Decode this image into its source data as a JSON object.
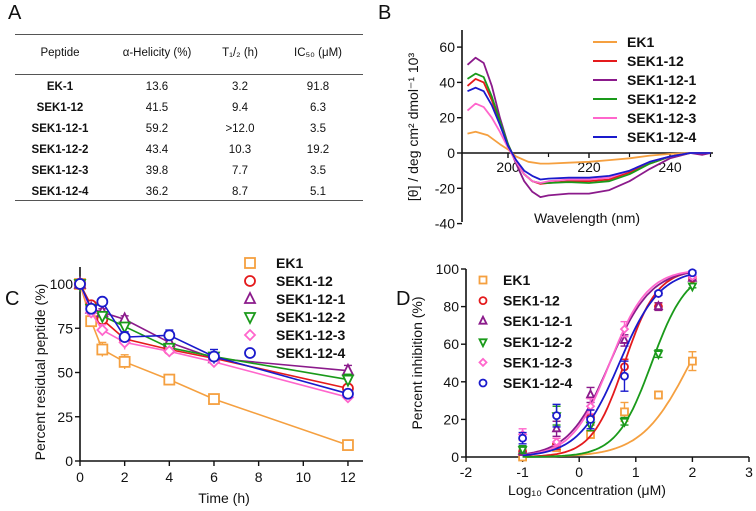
{
  "panel_labels": [
    "A",
    "B",
    "C",
    "D"
  ],
  "chart_data": [
    {
      "type": "table",
      "columns": [
        "Peptide",
        "α-Helicity (%)",
        "T₁/₂ (h)",
        "IC₅₀ (μM)"
      ],
      "rows": [
        [
          "EK-1",
          "13.6",
          "3.2",
          "91.8"
        ],
        [
          "SEK1-12",
          "41.5",
          "9.4",
          "6.3"
        ],
        [
          "SEK1-12-1",
          "59.2",
          ">12.0",
          "3.5"
        ],
        [
          "SEK1-12-2",
          "43.4",
          "10.3",
          "19.2"
        ],
        [
          "SEK1-12-3",
          "39.8",
          "7.7",
          "3.5"
        ],
        [
          "SEK1-12-4",
          "36.2",
          "8.7",
          "5.1"
        ]
      ]
    },
    {
      "type": "line",
      "xlabel": "Wavelength (nm)",
      "ylabel": "[θ] / deg cm² dmol⁻¹ 10³",
      "xlim": [
        188.6,
        250
      ],
      "ylim": [
        -40,
        70
      ],
      "xticks": [
        200,
        220,
        240
      ],
      "yticks": [
        60,
        40,
        20,
        0,
        -20,
        -40
      ],
      "legend": "top-right",
      "series": [
        {
          "name": "EK1",
          "color": "#f5a040",
          "x": [
            190,
            192,
            195,
            198,
            200,
            202,
            205,
            208,
            210,
            215,
            220,
            225,
            230,
            235,
            240,
            245,
            250
          ],
          "y": [
            11,
            12,
            10,
            5,
            2,
            -2,
            -5,
            -6,
            -6,
            -5.5,
            -5,
            -4,
            -3,
            -1.5,
            -0.5,
            0,
            0
          ]
        },
        {
          "name": "SEK1-12",
          "color": "#e41a1c",
          "x": [
            190,
            192,
            194,
            196,
            198,
            200,
            202,
            204,
            206,
            208,
            210,
            215,
            220,
            225,
            230,
            235,
            240,
            245,
            250
          ],
          "y": [
            38,
            42,
            40,
            30,
            17,
            5,
            -5,
            -12,
            -16,
            -17.5,
            -17,
            -16,
            -16,
            -15,
            -11,
            -6,
            -2,
            0,
            0
          ]
        },
        {
          "name": "SEK1-12-1",
          "color": "#8b1a8b",
          "x": [
            190,
            192,
            194,
            196,
            198,
            200,
            202,
            204,
            206,
            208,
            210,
            215,
            220,
            225,
            230,
            235,
            240,
            245,
            248,
            250
          ],
          "y": [
            50,
            54,
            51,
            38,
            20,
            5,
            -6,
            -16,
            -22,
            -25,
            -24,
            -23,
            -23,
            -21,
            -16,
            -9,
            -3,
            0,
            -1,
            0
          ]
        },
        {
          "name": "SEK1-12-2",
          "color": "#1a9a1a",
          "x": [
            190,
            192,
            194,
            196,
            198,
            200,
            202,
            204,
            206,
            208,
            210,
            215,
            220,
            225,
            230,
            235,
            240,
            245,
            250
          ],
          "y": [
            42,
            45,
            43,
            32,
            18,
            5,
            -5,
            -12,
            -16,
            -17,
            -17,
            -16.5,
            -17,
            -16,
            -12,
            -6,
            -2,
            0,
            0
          ]
        },
        {
          "name": "SEK1-12-3",
          "color": "#ff66cc",
          "x": [
            190,
            192,
            194,
            196,
            198,
            200,
            202,
            204,
            206,
            208,
            210,
            215,
            220,
            225,
            230,
            235,
            240,
            245,
            250
          ],
          "y": [
            24,
            28,
            26,
            20,
            12,
            3,
            -5,
            -12,
            -16,
            -17,
            -16,
            -15,
            -15,
            -14,
            -10,
            -5,
            -2,
            0,
            0
          ]
        },
        {
          "name": "SEK1-12-4",
          "color": "#1a1acc",
          "x": [
            190,
            192,
            194,
            196,
            198,
            200,
            202,
            204,
            206,
            208,
            210,
            215,
            220,
            225,
            230,
            235,
            240,
            245,
            250
          ],
          "y": [
            35,
            37,
            35,
            27,
            16,
            4,
            -4,
            -10,
            -13,
            -15,
            -14.5,
            -14,
            -14,
            -13,
            -10,
            -5,
            -2,
            0,
            0
          ]
        }
      ]
    },
    {
      "type": "line",
      "xlabel": "Time (h)",
      "ylabel": "Percent residual peptide (%)",
      "xlim": [
        0,
        12.7
      ],
      "ylim": [
        0,
        110
      ],
      "xticks": [
        0,
        2,
        4,
        6,
        8,
        10,
        12
      ],
      "yticks": [
        0,
        25,
        50,
        75,
        100
      ],
      "legend": "top-right",
      "x": [
        0,
        0.5,
        1,
        2,
        4,
        6,
        12
      ],
      "series": [
        {
          "name": "EK1",
          "color": "#f5a040",
          "marker": "square",
          "values": [
            100,
            79,
            63,
            56,
            46,
            35,
            9
          ],
          "error": [
            0,
            2,
            4,
            4,
            2,
            2,
            1
          ]
        },
        {
          "name": "SEK1-12",
          "color": "#e41a1c",
          "marker": "circle",
          "values": [
            100,
            88,
            80,
            69,
            63,
            58,
            41
          ],
          "error": [
            0,
            2,
            3,
            2,
            2,
            2,
            2
          ]
        },
        {
          "name": "SEK1-12-1",
          "color": "#8b1a8b",
          "marker": "triangle-up",
          "values": [
            100,
            86,
            84,
            80,
            67,
            58,
            51
          ],
          "error": [
            0,
            2,
            2,
            2,
            2,
            3,
            3
          ]
        },
        {
          "name": "SEK1-12-2",
          "color": "#1a9a1a",
          "marker": "triangle-down",
          "values": [
            100,
            86,
            82,
            76,
            64,
            59,
            46
          ],
          "error": [
            0,
            2,
            2,
            2,
            2,
            2,
            3
          ]
        },
        {
          "name": "SEK1-12-3",
          "color": "#ff66cc",
          "marker": "diamond",
          "values": [
            100,
            84,
            74,
            67,
            62,
            56,
            36
          ],
          "error": [
            0,
            2,
            3,
            4,
            2,
            2,
            2
          ]
        },
        {
          "name": "SEK1-12-4",
          "color": "#1a1acc",
          "marker": "circle",
          "values": [
            100,
            86,
            90,
            70,
            71,
            59,
            38
          ],
          "error": [
            0,
            2,
            2,
            3,
            3,
            4,
            2
          ]
        }
      ]
    },
    {
      "type": "scatter",
      "xlabel": "Log₁₀ Concentration (μM)",
      "ylabel": "Percent inhibition (%)",
      "xlim": [
        -2,
        3
      ],
      "ylim": [
        0,
        100
      ],
      "xticks": [
        -2,
        -1,
        0,
        1,
        2,
        3
      ],
      "yticks": [
        0,
        20,
        40,
        60,
        80,
        100
      ],
      "legend": "top-left",
      "x": [
        -1,
        -0.4,
        0.2,
        0.8,
        1.4,
        2
      ],
      "series": [
        {
          "name": "EK1",
          "color": "#f5a040",
          "marker": "square",
          "values": [
            0,
            5,
            12,
            24,
            33,
            51
          ],
          "error": [
            1,
            2,
            2,
            5,
            2,
            5
          ],
          "fit": {
            "log_ic50": 1.96,
            "hill": 1.0
          }
        },
        {
          "name": "SEK1-12",
          "color": "#e41a1c",
          "marker": "circle",
          "values": [
            3,
            7,
            21,
            48,
            80,
            95
          ],
          "error": [
            2,
            3,
            4,
            4,
            2,
            1
          ],
          "fit": {
            "log_ic50": 0.8,
            "hill": 1.5
          }
        },
        {
          "name": "SEK1-12-1",
          "color": "#8b1a8b",
          "marker": "triangle-up",
          "values": [
            3,
            15,
            33,
            62,
            80,
            95
          ],
          "error": [
            2,
            4,
            4,
            3,
            2,
            1
          ],
          "fit": {
            "log_ic50": 0.54,
            "hill": 1.2
          }
        },
        {
          "name": "SEK1-12-2",
          "color": "#1a9a1a",
          "marker": "triangle-down",
          "values": [
            4,
            22,
            17,
            19,
            55,
            91
          ],
          "error": [
            2,
            5,
            3,
            2,
            2,
            1
          ],
          "fit": {
            "log_ic50": 1.28,
            "hill": 1.4
          }
        },
        {
          "name": "SEK1-12-3",
          "color": "#ff66cc",
          "marker": "diamond",
          "values": [
            12,
            8,
            27,
            68,
            87,
            96
          ],
          "error": [
            3,
            2,
            4,
            4,
            1,
            1
          ],
          "fit": {
            "log_ic50": 0.54,
            "hill": 1.3
          }
        },
        {
          "name": "SEK1-12-4",
          "color": "#1a1acc",
          "marker": "circle",
          "values": [
            10,
            22,
            20,
            43,
            87,
            98
          ],
          "error": [
            3,
            6,
            5,
            8,
            1,
            1
          ],
          "fit": {
            "log_ic50": 0.71,
            "hill": 1.2
          }
        }
      ]
    }
  ]
}
